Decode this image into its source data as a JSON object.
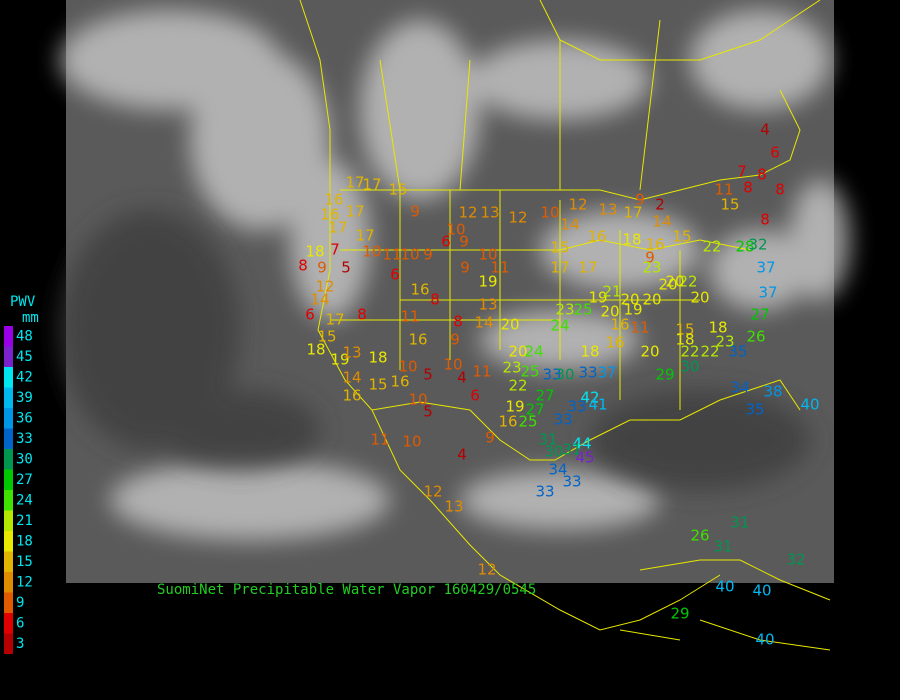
{
  "title": "SuomiNet Precipitable Water Vapor 160429/0545",
  "title_color": "#22cc22",
  "legend": {
    "title": "PWV",
    "unit": "mm",
    "levels": [
      {
        "value": 48,
        "color": "#9a00e6"
      },
      {
        "value": 45,
        "color": "#7a22cc"
      },
      {
        "value": 42,
        "color": "#00e6f0"
      },
      {
        "value": 39,
        "color": "#00b8f0"
      },
      {
        "value": 36,
        "color": "#0096e6"
      },
      {
        "value": 33,
        "color": "#0064c8"
      },
      {
        "value": 30,
        "color": "#009650"
      },
      {
        "value": 27,
        "color": "#00c800"
      },
      {
        "value": 24,
        "color": "#40e000"
      },
      {
        "value": 21,
        "color": "#b4e800"
      },
      {
        "value": 18,
        "color": "#e8e800"
      },
      {
        "value": 15,
        "color": "#e0b400"
      },
      {
        "value": 12,
        "color": "#e08c00"
      },
      {
        "value": 9,
        "color": "#e05a00"
      },
      {
        "value": 6,
        "color": "#e00000"
      },
      {
        "value": 3,
        "color": "#b40000"
      }
    ]
  },
  "stations": [
    4,
    6,
    7,
    8,
    11,
    8,
    8,
    15,
    8,
    9,
    2,
    13,
    17,
    12,
    10,
    14,
    12,
    12,
    13,
    9,
    17,
    17,
    15,
    16,
    16,
    17,
    17,
    17,
    10,
    11,
    10,
    9,
    6,
    10,
    9,
    10,
    11,
    9,
    18,
    7,
    5,
    8,
    9,
    6,
    16,
    8,
    19,
    13,
    8,
    14,
    20,
    11,
    16,
    9,
    12,
    14,
    6,
    17,
    8,
    15,
    18,
    19,
    13,
    18,
    10,
    5,
    14,
    15,
    16,
    16,
    10,
    5,
    10,
    4,
    11,
    6,
    20,
    24,
    23,
    25,
    22,
    27,
    19,
    27,
    16,
    25,
    33,
    30,
    33,
    37,
    42,
    41,
    33,
    33,
    31,
    44,
    30,
    31,
    45,
    34,
    33,
    33,
    9,
    4,
    11,
    10,
    12,
    13,
    12,
    15,
    16,
    18,
    16,
    9,
    14,
    15,
    17,
    17,
    19,
    21,
    20,
    20,
    19,
    20,
    20,
    22,
    20,
    16,
    11,
    23,
    25,
    24,
    16,
    18,
    23,
    20,
    22,
    28,
    32,
    37,
    37,
    27,
    26,
    35,
    18,
    23,
    15,
    18,
    20,
    22,
    22,
    29,
    30,
    34,
    38,
    35,
    40,
    26,
    31,
    31,
    32,
    29,
    40,
    40,
    40
  ]
}
